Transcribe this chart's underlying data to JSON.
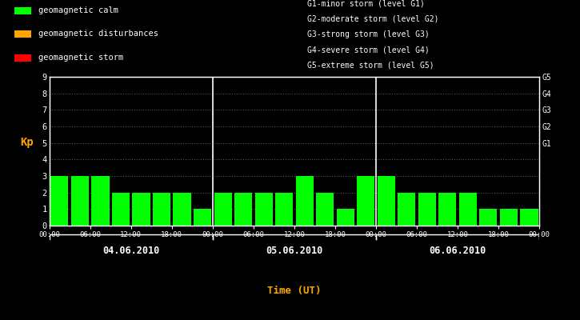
{
  "background_color": "#000000",
  "plot_bg_color": "#000000",
  "bar_color_calm": "#00ff00",
  "bar_color_disturbance": "#ffa500",
  "bar_color_storm": "#ff0000",
  "grid_color": "#ffffff",
  "text_color": "#ffffff",
  "axis_color": "#ffffff",
  "xlabel_color": "#ffa500",
  "days": [
    "04.06.2010",
    "05.06.2010",
    "06.06.2010"
  ],
  "kp_d1": [
    3,
    3,
    3,
    2,
    2,
    2,
    2,
    1
  ],
  "kp_d2": [
    2,
    2,
    2,
    2,
    3,
    2,
    1,
    3
  ],
  "kp_d3": [
    3,
    2,
    2,
    2,
    2,
    1,
    1,
    1
  ],
  "ylim": [
    0,
    9
  ],
  "yticks": [
    0,
    1,
    2,
    3,
    4,
    5,
    6,
    7,
    8,
    9
  ],
  "right_ytick_positions": [
    5,
    6,
    7,
    8,
    9
  ],
  "right_ytick_labels": [
    "G1",
    "G2",
    "G3",
    "G4",
    "G5"
  ],
  "xlabel": "Time (UT)",
  "ylabel": "Kp",
  "legend_items": [
    [
      "#00ff00",
      "geomagnetic calm"
    ],
    [
      "#ffa500",
      "geomagnetic disturbances"
    ],
    [
      "#ff0000",
      "geomagnetic storm"
    ]
  ],
  "legend_right_lines": [
    "G1-minor storm (level G1)",
    "G2-moderate storm (level G2)",
    "G3-strong storm (level G3)",
    "G4-severe storm (level G4)",
    "G5-extreme storm (level G5)"
  ],
  "bar_width": 2.6,
  "storm_threshold": 5,
  "disturbance_threshold": 4
}
